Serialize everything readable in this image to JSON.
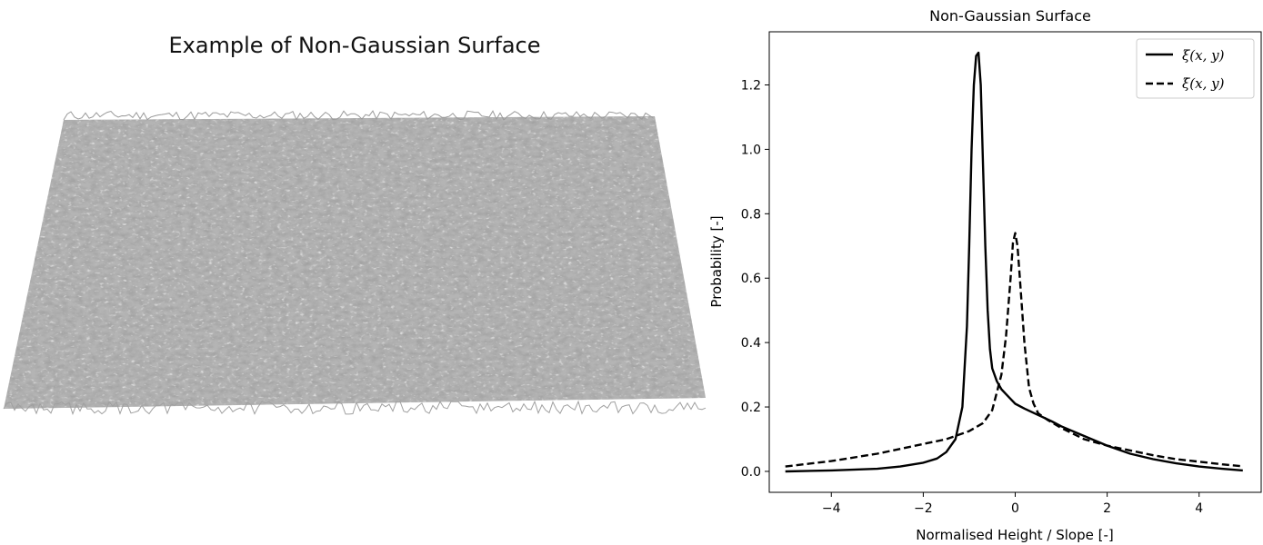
{
  "surface_panel": {
    "title": "Example of Non-Gaussian Surface",
    "surface_color": "#b4b4b4"
  },
  "chart_data": {
    "type": "line",
    "title": "Non-Gaussian Surface",
    "xlabel": "Normalised Height / Slope [-]",
    "ylabel": "Probability [-]",
    "xlim": [
      -5.35,
      5.35
    ],
    "ylim": [
      -0.065,
      1.365
    ],
    "xticks": [
      -4,
      -2,
      0,
      2,
      4
    ],
    "xtick_labels": [
      "−4",
      "−2",
      "0",
      "2",
      "4"
    ],
    "yticks": [
      0.0,
      0.2,
      0.4,
      0.6,
      0.8,
      1.0,
      1.2
    ],
    "ytick_labels": [
      "0.0",
      "0.2",
      "0.4",
      "0.6",
      "0.8",
      "1.0",
      "1.2"
    ],
    "grid": false,
    "legend_position": "top-right",
    "series": [
      {
        "name": "ξ(x, y)",
        "style": "solid",
        "color": "#000000",
        "x": [
          -5.0,
          -4.0,
          -3.0,
          -2.5,
          -2.0,
          -1.7,
          -1.5,
          -1.3,
          -1.15,
          -1.05,
          -1.0,
          -0.95,
          -0.9,
          -0.85,
          -0.8,
          -0.75,
          -0.7,
          -0.65,
          -0.6,
          -0.55,
          -0.5,
          -0.4,
          -0.3,
          -0.2,
          -0.1,
          0.0,
          0.2,
          0.5,
          0.8,
          1.0,
          1.5,
          2.0,
          2.5,
          3.0,
          3.5,
          4.0,
          4.5,
          4.95
        ],
        "y": [
          0.0,
          0.003,
          0.008,
          0.015,
          0.027,
          0.04,
          0.06,
          0.1,
          0.2,
          0.45,
          0.7,
          1.0,
          1.2,
          1.29,
          1.3,
          1.2,
          0.95,
          0.7,
          0.5,
          0.38,
          0.32,
          0.28,
          0.255,
          0.24,
          0.225,
          0.21,
          0.195,
          0.175,
          0.155,
          0.14,
          0.11,
          0.08,
          0.055,
          0.038,
          0.025,
          0.015,
          0.008,
          0.003
        ]
      },
      {
        "name": "ξ̇(x, y)",
        "style": "dashed",
        "color": "#000000",
        "x": [
          -5.0,
          -4.0,
          -3.0,
          -2.0,
          -1.5,
          -1.0,
          -0.7,
          -0.5,
          -0.3,
          -0.2,
          -0.1,
          -0.05,
          0.0,
          0.05,
          0.1,
          0.2,
          0.3,
          0.4,
          0.5,
          0.7,
          1.0,
          1.5,
          2.0,
          2.5,
          3.0,
          3.5,
          4.0,
          4.5,
          4.95
        ],
        "y": [
          0.015,
          0.032,
          0.055,
          0.085,
          0.1,
          0.125,
          0.15,
          0.19,
          0.3,
          0.42,
          0.6,
          0.71,
          0.74,
          0.7,
          0.6,
          0.4,
          0.26,
          0.21,
          0.18,
          0.16,
          0.135,
          0.1,
          0.08,
          0.065,
          0.05,
          0.038,
          0.03,
          0.022,
          0.016
        ]
      }
    ]
  }
}
